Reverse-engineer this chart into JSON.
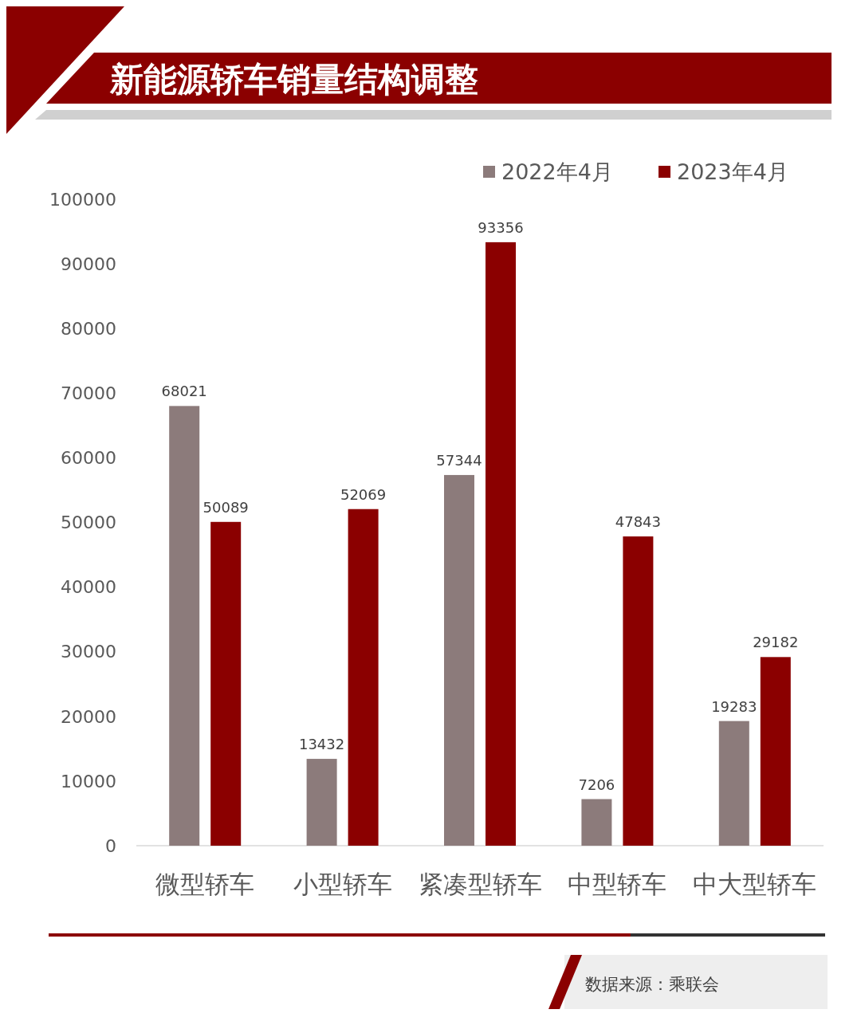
{
  "chart_data": {
    "type": "bar",
    "title": "新能源轿车销量结构调整",
    "categories": [
      "微型轿车",
      "小型轿车",
      "紧凑型轿车",
      "中型轿车",
      "中大型轿车"
    ],
    "series": [
      {
        "name": "2022年4月",
        "color": "#8c7b7b",
        "values": [
          68021,
          13432,
          57344,
          7206,
          19283
        ]
      },
      {
        "name": "2023年4月",
        "color": "#8b0000",
        "values": [
          50089,
          52069,
          93356,
          47843,
          29182
        ]
      }
    ],
    "ylim": [
      0,
      100000
    ],
    "yticks": [
      0,
      10000,
      20000,
      30000,
      40000,
      50000,
      60000,
      70000,
      80000,
      90000,
      100000
    ],
    "data_labels": true,
    "legend": "top right",
    "grid": false,
    "annotations": [
      "数据来源：乘联会"
    ]
  }
}
